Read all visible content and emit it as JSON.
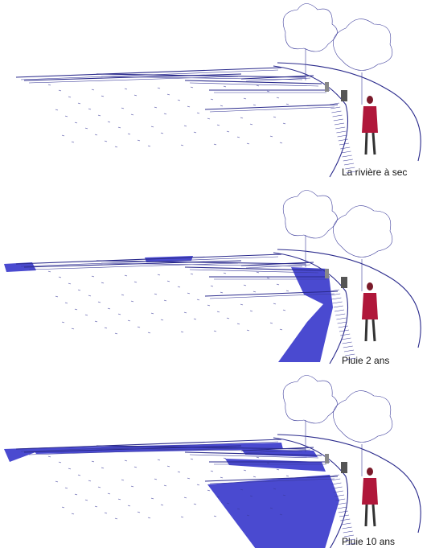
{
  "panels": [
    {
      "caption": "La rivière à sec"
    },
    {
      "caption": "Pluie 2 ans"
    },
    {
      "caption": "Pluie 10 ans"
    }
  ]
}
